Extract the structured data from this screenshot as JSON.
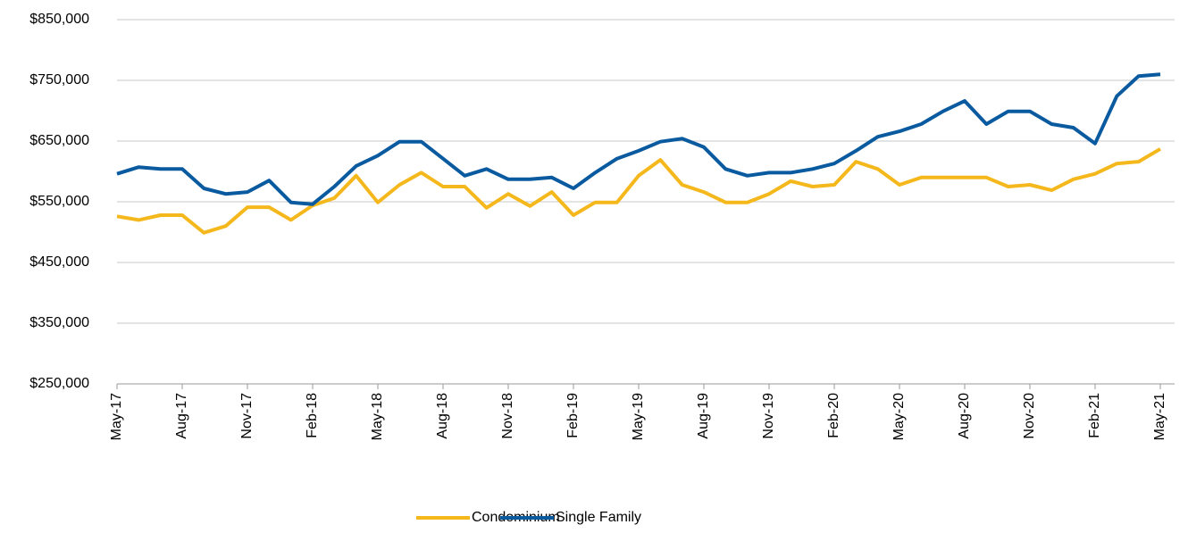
{
  "chart_data": {
    "type": "line",
    "categories": [
      "May-17",
      null,
      null,
      "Aug-17",
      null,
      null,
      "Nov-17",
      null,
      null,
      "Feb-18",
      null,
      null,
      "May-18",
      null,
      null,
      "Aug-18",
      null,
      null,
      "Nov-18",
      null,
      null,
      "Feb-19",
      null,
      null,
      "May-19",
      null,
      null,
      "Aug-19",
      null,
      null,
      "Nov-19",
      null,
      null,
      "Feb-20",
      null,
      null,
      "May-20",
      null,
      null,
      "Aug-20",
      null,
      null,
      "Nov-20",
      null,
      null,
      "Feb-21",
      null,
      null,
      "May-21"
    ],
    "series": [
      {
        "name": "Condominium",
        "color": "#f5b81c",
        "values": [
          526000,
          520000,
          528000,
          528000,
          499000,
          510000,
          541000,
          541000,
          520000,
          544000,
          556000,
          593000,
          549000,
          578000,
          598000,
          575000,
          575000,
          540000,
          563000,
          543000,
          566000,
          528000,
          549000,
          549000,
          593000,
          619000,
          578000,
          566000,
          549000,
          549000,
          563000,
          584000,
          575000,
          578000,
          616000,
          604000,
          578000,
          590000,
          590000,
          590000,
          590000,
          575000,
          578000,
          569000,
          587000,
          596000,
          613000,
          616000,
          637000
        ]
      },
      {
        "name": "Single Family",
        "color": "#0a5aa0",
        "values": [
          596000,
          607000,
          604000,
          604000,
          572000,
          563000,
          566000,
          585000,
          549000,
          546000,
          575000,
          609000,
          626000,
          649000,
          649000,
          621000,
          593000,
          604000,
          587000,
          587000,
          590000,
          572000,
          598000,
          621000,
          634000,
          649000,
          654000,
          640000,
          604000,
          593000,
          598000,
          598000,
          604000,
          613000,
          634000,
          657000,
          666000,
          678000,
          699000,
          716000,
          678000,
          699000,
          699000,
          678000,
          672000,
          646000,
          724000,
          757000,
          760000
        ]
      }
    ],
    "ylim": [
      250000,
      850000
    ],
    "yticks": [
      {
        "value": 250000,
        "label": "$250,000"
      },
      {
        "value": 350000,
        "label": "$350,000"
      },
      {
        "value": 450000,
        "label": "$450,000"
      },
      {
        "value": 550000,
        "label": "$550,000"
      },
      {
        "value": 650000,
        "label": "$650,000"
      },
      {
        "value": 750000,
        "label": "$750,000"
      },
      {
        "value": 850000,
        "label": "$850,000"
      }
    ],
    "grid": true,
    "legend": "bottom"
  }
}
